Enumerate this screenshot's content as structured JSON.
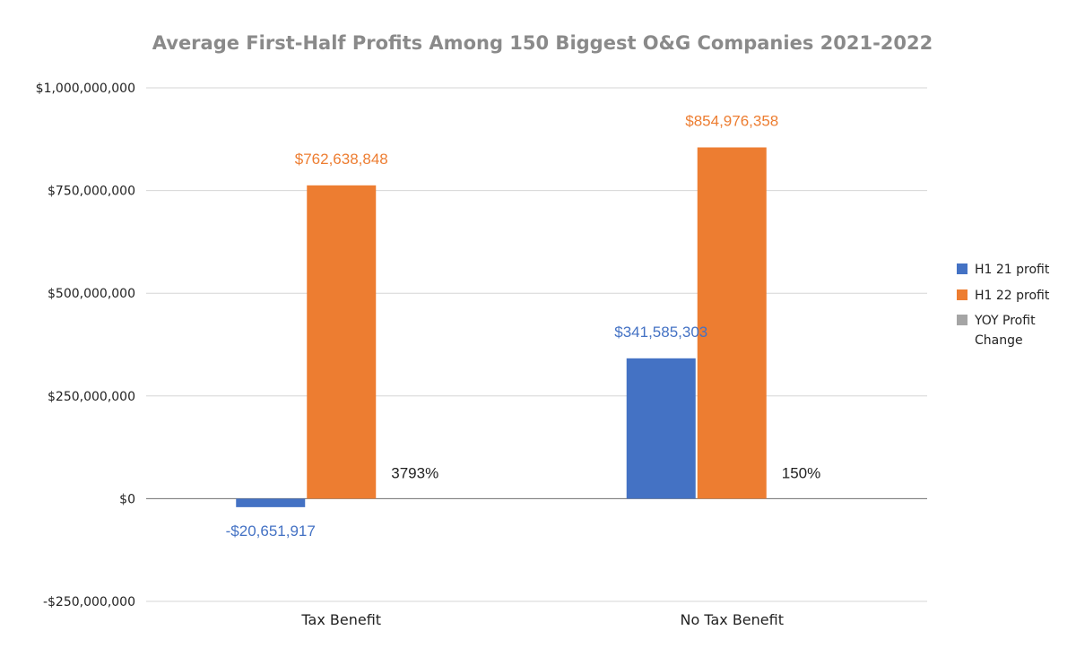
{
  "chart_data": {
    "type": "bar",
    "title": "Average First-Half Profits Among 150 Biggest O&G Companies 2021-2022",
    "categories": [
      "Tax Benefit",
      "No Tax Benefit"
    ],
    "ylim": [
      -250000000,
      1000000000
    ],
    "yticks": [
      1000000000,
      750000000,
      500000000,
      250000000,
      0,
      -250000000
    ],
    "ytick_labels": [
      "$1,000,000,000",
      "$750,000,000",
      "$500,000,000",
      "$250,000,000",
      "$0",
      "-$250,000,000"
    ],
    "grid": true,
    "legend_position": "right",
    "series": [
      {
        "name": "H1 21 profit",
        "color": "#4472c4",
        "values": [
          -20651917,
          341585303
        ],
        "labels": [
          "-$20,651,917",
          "$341,585,303"
        ]
      },
      {
        "name": "H1 22 profit",
        "color": "#ed7d31",
        "values": [
          762638848,
          854976358
        ],
        "labels": [
          "$762,638,848",
          "$854,976,358"
        ]
      },
      {
        "name": "YOY Profit Change",
        "color": "#a5a5a5",
        "values": [
          37.93,
          1.5
        ],
        "labels": [
          "3793%",
          "150%"
        ]
      }
    ]
  }
}
